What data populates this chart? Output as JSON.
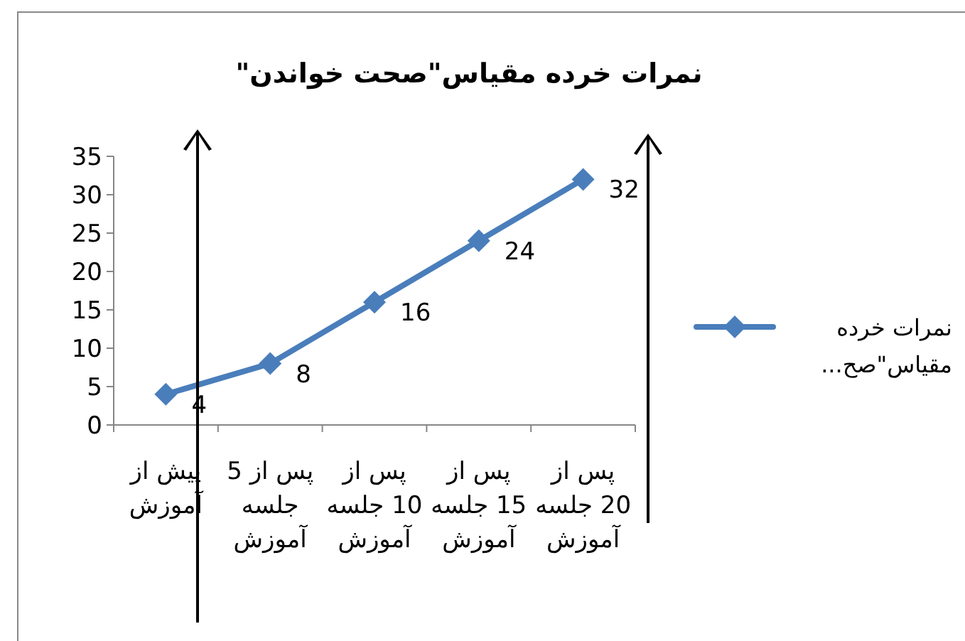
{
  "chart_data": {
    "type": "line",
    "title": "نمرات خرده مقیاس\"صحت خواندن\"",
    "categories": [
      "پیش از آموزش",
      "پس از 5 جلسه آموزش",
      "پس از 10 جلسه آموزش",
      "پس از 15 جلسه آموزش",
      "پس از 20 جلسه آموزش"
    ],
    "series": [
      {
        "name": "نمرات خرده مقیاس\"صح...",
        "color": "#4a7ebb",
        "values": [
          4,
          8,
          16,
          24,
          32
        ]
      }
    ],
    "ylim": [
      0,
      35
    ],
    "yticks": [
      0,
      5,
      10,
      15,
      20,
      25,
      30,
      35
    ],
    "data_labels": true,
    "marker": "diamond",
    "line_style": "solid",
    "grid": false,
    "legend": "right"
  }
}
